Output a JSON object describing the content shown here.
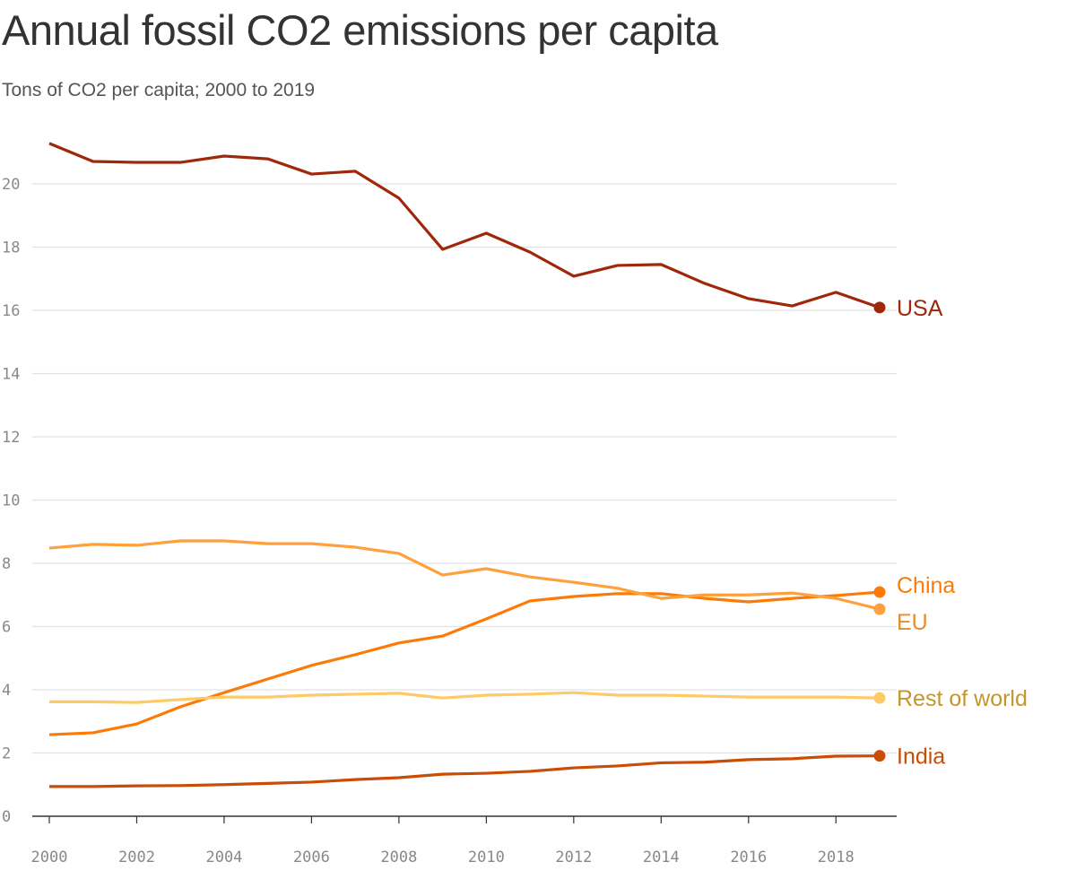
{
  "title": "Annual fossil CO2 emissions per capita",
  "subtitle": "Tons of CO2 per capita; 2000 to 2019",
  "chart_data": {
    "type": "line",
    "title": "Annual fossil CO2 emissions per capita",
    "subtitle": "Tons of CO2 per capita; 2000 to 2019",
    "x": [
      2000,
      2001,
      2002,
      2003,
      2004,
      2005,
      2006,
      2007,
      2008,
      2009,
      2010,
      2011,
      2012,
      2013,
      2014,
      2015,
      2016,
      2017,
      2018,
      2019
    ],
    "xlim": [
      2000,
      2019
    ],
    "ylim": [
      0,
      21.5
    ],
    "xticks": [
      "2000",
      "2002",
      "2004",
      "2006",
      "2008",
      "2010",
      "2012",
      "2014",
      "2016",
      "2018"
    ],
    "yticks": [
      "0",
      "2",
      "4",
      "6",
      "8",
      "10",
      "12",
      "14",
      "16",
      "18",
      "20"
    ],
    "grid": true,
    "legend": "direct labels at line ends",
    "series": [
      {
        "name": "USA",
        "color": "#a0280a",
        "label_color": "#a0280a",
        "values": [
          21.28,
          20.71,
          20.68,
          20.68,
          20.88,
          20.79,
          20.31,
          20.4,
          19.55,
          17.93,
          18.44,
          17.84,
          17.08,
          17.42,
          17.45,
          16.85,
          16.37,
          16.14,
          16.57,
          16.09
        ]
      },
      {
        "name": "China",
        "color": "#fb7b06",
        "label_color": "#fb7b06",
        "values": [
          2.58,
          2.64,
          2.92,
          3.46,
          3.91,
          4.34,
          4.77,
          5.11,
          5.48,
          5.7,
          6.24,
          6.81,
          6.95,
          7.04,
          7.04,
          6.89,
          6.78,
          6.89,
          6.98,
          7.09
        ]
      },
      {
        "name": "EU",
        "color": "#fea03c",
        "label_color": "#e58e2a",
        "values": [
          8.48,
          8.6,
          8.57,
          8.71,
          8.71,
          8.62,
          8.62,
          8.51,
          8.31,
          7.63,
          7.83,
          7.57,
          7.4,
          7.21,
          6.89,
          7.0,
          7.0,
          7.06,
          6.89,
          6.55
        ]
      },
      {
        "name": "Rest of world",
        "color": "#ffc966",
        "label_color": "#c4962f",
        "values": [
          3.62,
          3.62,
          3.6,
          3.69,
          3.77,
          3.77,
          3.83,
          3.86,
          3.89,
          3.74,
          3.83,
          3.86,
          3.91,
          3.83,
          3.83,
          3.8,
          3.77,
          3.77,
          3.77,
          3.74
        ]
      },
      {
        "name": "India",
        "color": "#c94d06",
        "label_color": "#c94d06",
        "values": [
          0.94,
          0.94,
          0.96,
          0.97,
          1.0,
          1.04,
          1.08,
          1.16,
          1.22,
          1.33,
          1.36,
          1.42,
          1.53,
          1.59,
          1.69,
          1.71,
          1.79,
          1.82,
          1.9,
          1.91
        ]
      }
    ]
  }
}
